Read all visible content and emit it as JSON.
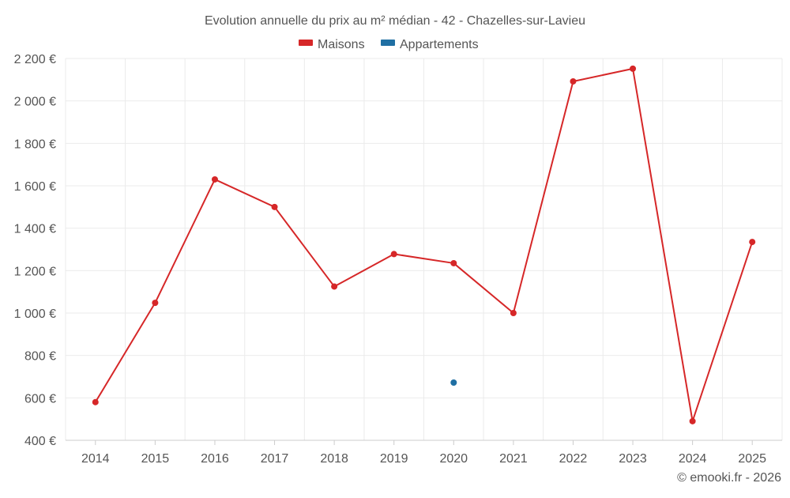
{
  "chart_data": {
    "type": "line",
    "title": "Evolution annuelle du prix au m² médian - 42 - Chazelles-sur-Lavieu",
    "categories": [
      "2014",
      "2015",
      "2016",
      "2017",
      "2018",
      "2019",
      "2020",
      "2021",
      "2022",
      "2023",
      "2024",
      "2025"
    ],
    "series": [
      {
        "name": "Maisons",
        "color": "#d62728",
        "values": [
          580,
          1048,
          1630,
          1500,
          1125,
          1278,
          1235,
          1000,
          2092,
          2152,
          490,
          1335
        ]
      },
      {
        "name": "Appartements",
        "color": "#1f6fa3",
        "values": [
          null,
          null,
          null,
          null,
          null,
          null,
          672,
          null,
          null,
          null,
          null,
          null
        ]
      }
    ],
    "ylim": [
      400,
      2200
    ],
    "yticks": [
      400,
      600,
      800,
      1000,
      1200,
      1400,
      1600,
      1800,
      2000,
      2200
    ],
    "ytick_labels": [
      "400 €",
      "600 €",
      "800 €",
      "1 000 €",
      "1 200 €",
      "1 400 €",
      "1 600 €",
      "1 800 €",
      "2 000 €",
      "2 200 €"
    ],
    "xlabel": "",
    "ylabel": "",
    "grid": true,
    "legend_position": "top-center",
    "credit": "© emooki.fr - 2026"
  }
}
